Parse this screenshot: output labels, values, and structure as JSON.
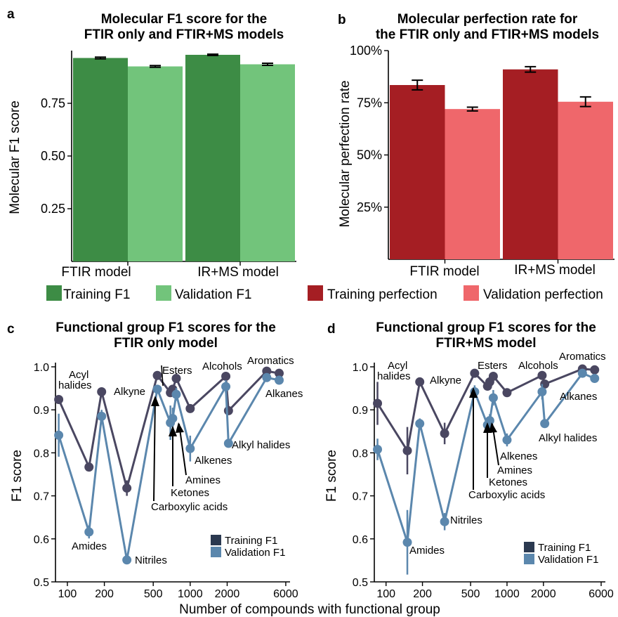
{
  "colors": {
    "train_green": "#3d8c45",
    "val_green": "#72c47b",
    "train_red": "#a51e23",
    "val_red": "#ef676b",
    "train_line": "#4a4761",
    "val_line": "#5b87ad",
    "legend_train": "#2b3950"
  },
  "xlabel_bottom": "Number of compounds with functional group",
  "chart_data": [
    {
      "panel": "a",
      "type": "bar",
      "title_lines": [
        "Molecular F1 score for the",
        "FTIR only and FTIR+MS models"
      ],
      "ylabel": "Molecular F1 score",
      "ylim": [
        0,
        1.0
      ],
      "yticks": [
        0.25,
        0.5,
        0.75
      ],
      "ytick_labels": [
        "0.25",
        "0.50",
        "0.75"
      ],
      "categories": [
        "FTIR model",
        "IR+MS model"
      ],
      "series": [
        {
          "name": "Training F1",
          "values": [
            0.965,
            0.98
          ],
          "errors": [
            0.004,
            0.003
          ]
        },
        {
          "name": "Validation F1",
          "values": [
            0.925,
            0.935
          ],
          "errors": [
            0.004,
            0.005
          ]
        }
      ]
    },
    {
      "panel": "b",
      "type": "bar",
      "title_lines": [
        "Molecular perfection rate for",
        "the FTIR only and FTIR+MS models"
      ],
      "ylabel": "Molecular perfection rate",
      "ylim": [
        0,
        100
      ],
      "yticks": [
        25,
        50,
        75,
        100
      ],
      "ytick_labels": [
        "25%",
        "50%",
        "75%",
        "100%"
      ],
      "categories": [
        "FTIR model",
        "IR+MS model"
      ],
      "series": [
        {
          "name": "Training perfection",
          "values": [
            83.5,
            91
          ],
          "errors": [
            2.3,
            1.3
          ]
        },
        {
          "name": "Validation perfection",
          "values": [
            72,
            75.5
          ],
          "errors": [
            0.9,
            2.3
          ]
        }
      ]
    },
    {
      "panel": "c",
      "type": "line",
      "title_lines": [
        "Functional group F1 scores for the",
        "FTIR only model"
      ],
      "ylabel": "F1 score",
      "xscale": "log",
      "xlim": [
        80,
        6500
      ],
      "ylim": [
        0.5,
        1.0
      ],
      "xticks": [
        100,
        200,
        500,
        1000,
        2000,
        6000
      ],
      "xtick_labels": [
        "100",
        "200",
        "500",
        "1000",
        "2000",
        "6000"
      ],
      "yticks": [
        0.5,
        0.6,
        0.7,
        0.8,
        0.9,
        1.0
      ],
      "ytick_labels": [
        "0.5",
        "0.6",
        "0.7",
        "0.8",
        "0.9",
        "1.0"
      ],
      "legend": [
        "Training F1",
        "Validation F1"
      ],
      "x": [
        85,
        150,
        190,
        305,
        540,
        690,
        720,
        770,
        1000,
        1950,
        2050,
        4200,
        5300
      ],
      "series": [
        {
          "name": "Training F1",
          "values": [
            0.924,
            0.767,
            0.942,
            0.718,
            0.98,
            0.94,
            0.948,
            0.973,
            0.903,
            0.978,
            0.898,
            0.99,
            0.985
          ],
          "errors": [
            0.008,
            0.004,
            0.004,
            0.018,
            0.004,
            0.008,
            0.008,
            0.004,
            0.008,
            0.004,
            0.008,
            0.003,
            0.003
          ]
        },
        {
          "name": "Validation F1",
          "values": [
            0.841,
            0.616,
            0.885,
            0.551,
            0.948,
            0.87,
            0.88,
            0.936,
            0.81,
            0.954,
            0.822,
            0.975,
            0.969
          ],
          "errors": [
            0.05,
            0.015,
            0.015,
            0.005,
            0.01,
            0.04,
            0.025,
            0.015,
            0.03,
            0.015,
            0.008,
            0.004,
            0.004
          ]
        }
      ],
      "annotations": [
        "Acyl",
        "halides",
        "Alkyne",
        "Amides",
        "Nitriles",
        "Esters",
        "Carboxylic acids",
        "Ketones",
        "Amines",
        "Alkenes",
        "Alcohols",
        "Alkyl halides",
        "Aromatics",
        "Alkanes"
      ]
    },
    {
      "panel": "d",
      "type": "line",
      "title_lines": [
        "Functional group F1 scores for the",
        "FTIR+MS model"
      ],
      "ylabel": "F1 score",
      "xscale": "log",
      "xlim": [
        80,
        6500
      ],
      "ylim": [
        0.5,
        1.0
      ],
      "xticks": [
        100,
        200,
        500,
        1000,
        2000,
        6000
      ],
      "xtick_labels": [
        "100",
        "200",
        "500",
        "1000",
        "2000",
        "6000"
      ],
      "yticks": [
        0.5,
        0.6,
        0.7,
        0.8,
        0.9,
        1.0
      ],
      "ytick_labels": [
        "0.5",
        "0.6",
        "0.7",
        "0.8",
        "0.9",
        "1.0"
      ],
      "legend": [
        "Training F1",
        "Validation F1"
      ],
      "x": [
        85,
        150,
        190,
        305,
        540,
        690,
        720,
        770,
        1000,
        1950,
        2050,
        4200,
        5300
      ],
      "series": [
        {
          "name": "Training F1",
          "values": [
            0.915,
            0.805,
            0.965,
            0.845,
            0.985,
            0.955,
            0.965,
            0.978,
            0.94,
            0.98,
            0.96,
            0.995,
            0.993
          ],
          "errors": [
            0.05,
            0.055,
            0.01,
            0.025,
            0.004,
            0.01,
            0.01,
            0.004,
            0.005,
            0.005,
            0.005,
            0.003,
            0.003
          ]
        },
        {
          "name": "Validation F1",
          "values": [
            0.808,
            0.592,
            0.868,
            0.64,
            0.942,
            0.865,
            0.875,
            0.928,
            0.83,
            0.942,
            0.868,
            0.985,
            0.973
          ],
          "errors": [
            0.025,
            0.075,
            0.012,
            0.02,
            0.015,
            0.015,
            0.015,
            0.018,
            0.015,
            0.018,
            0.005,
            0.006,
            0.006
          ]
        }
      ],
      "annotations": [
        "Acyl",
        "halides",
        "Alkyne",
        "Amides",
        "Nitriles",
        "Esters",
        "Carboxylic acids",
        "Ketones",
        "Amines",
        "Alkenes",
        "Alcohols",
        "Alkyl halides",
        "Aromatics",
        "Alkanes"
      ]
    }
  ],
  "panel_letters": [
    "a",
    "b",
    "c",
    "d"
  ]
}
